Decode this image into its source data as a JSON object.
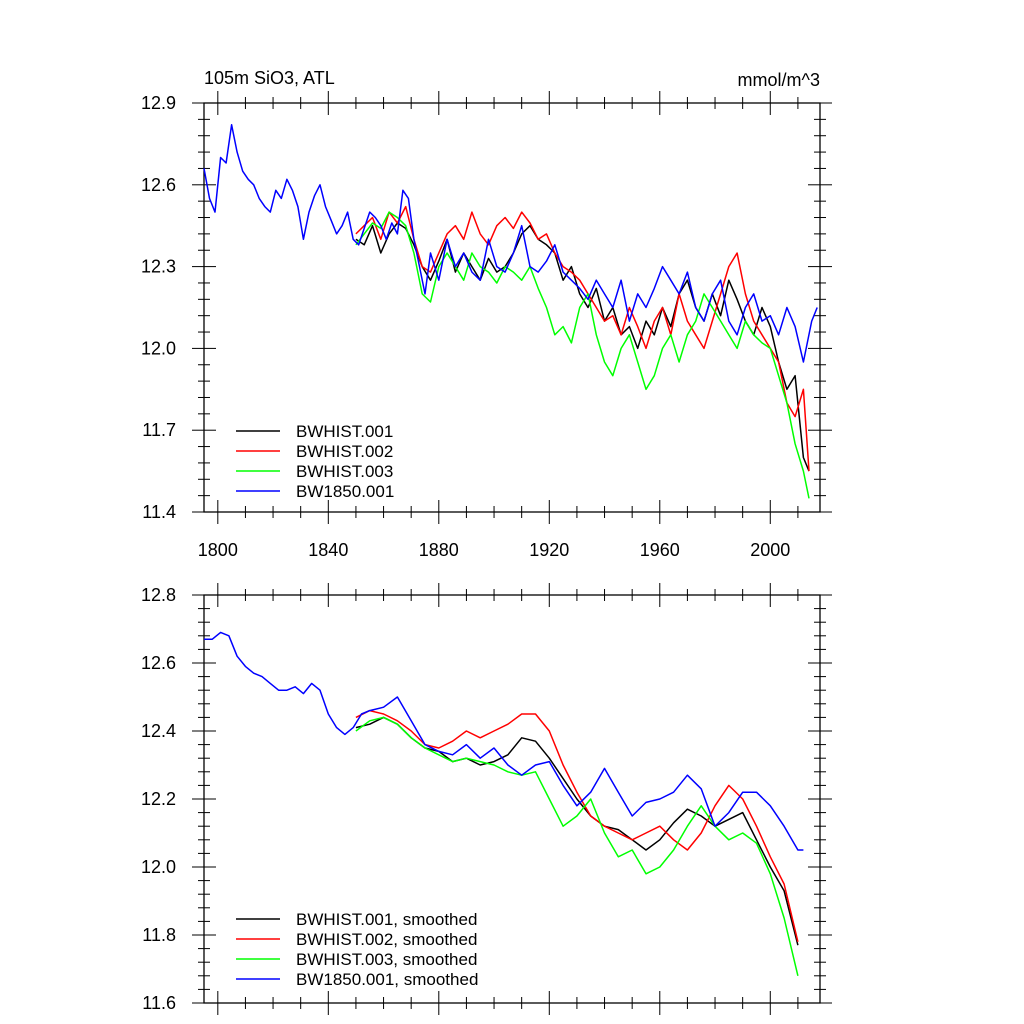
{
  "chart_data": [
    {
      "type": "line",
      "title": "105m SiO3, ATL",
      "units": "mmol/m^3",
      "xlabel": "",
      "ylabel": "",
      "xlim": [
        1795,
        2018
      ],
      "ylim": [
        11.4,
        12.9
      ],
      "xticks": [
        1800,
        1840,
        1880,
        1920,
        1960,
        2000
      ],
      "ytick_labels": [
        "12.9",
        "12.6",
        "12.3",
        "12.0",
        "11.7",
        "11.4"
      ],
      "legend_position": "bottom-left",
      "series": [
        {
          "name": "BWHIST.001",
          "color": "#000000",
          "x": [
            1850,
            1853,
            1856,
            1859,
            1862,
            1865,
            1868,
            1871,
            1874,
            1877,
            1880,
            1883,
            1886,
            1889,
            1892,
            1895,
            1898,
            1901,
            1904,
            1907,
            1910,
            1913,
            1916,
            1919,
            1922,
            1925,
            1928,
            1931,
            1934,
            1937,
            1940,
            1943,
            1946,
            1949,
            1952,
            1955,
            1958,
            1961,
            1964,
            1967,
            1970,
            1973,
            1976,
            1979,
            1982,
            1985,
            1988,
            1991,
            1994,
            1997,
            2000,
            2003,
            2006,
            2009,
            2012,
            2014
          ],
          "values": [
            12.4,
            12.38,
            12.45,
            12.35,
            12.42,
            12.46,
            12.44,
            12.38,
            12.3,
            12.25,
            12.32,
            12.4,
            12.28,
            12.35,
            12.3,
            12.25,
            12.33,
            12.28,
            12.3,
            12.35,
            12.42,
            12.45,
            12.4,
            12.38,
            12.35,
            12.25,
            12.3,
            12.2,
            12.15,
            12.22,
            12.1,
            12.15,
            12.05,
            12.08,
            12.0,
            12.1,
            12.05,
            12.15,
            12.08,
            12.2,
            12.25,
            12.15,
            12.1,
            12.2,
            12.12,
            12.25,
            12.18,
            12.1,
            12.05,
            12.15,
            12.08,
            11.95,
            11.85,
            11.9,
            11.6,
            11.55
          ]
        },
        {
          "name": "BWHIST.002",
          "color": "#ff0000",
          "x": [
            1850,
            1853,
            1856,
            1859,
            1862,
            1865,
            1868,
            1871,
            1874,
            1877,
            1880,
            1883,
            1886,
            1889,
            1892,
            1895,
            1898,
            1901,
            1904,
            1907,
            1910,
            1913,
            1916,
            1919,
            1922,
            1925,
            1928,
            1931,
            1934,
            1937,
            1940,
            1943,
            1946,
            1949,
            1952,
            1955,
            1958,
            1961,
            1964,
            1967,
            1970,
            1973,
            1976,
            1979,
            1982,
            1985,
            1988,
            1991,
            1994,
            1997,
            2000,
            2003,
            2006,
            2009,
            2012,
            2014
          ],
          "values": [
            12.42,
            12.45,
            12.48,
            12.4,
            12.5,
            12.46,
            12.52,
            12.4,
            12.3,
            12.28,
            12.35,
            12.42,
            12.45,
            12.4,
            12.5,
            12.42,
            12.38,
            12.45,
            12.48,
            12.44,
            12.5,
            12.46,
            12.4,
            12.42,
            12.35,
            12.3,
            12.28,
            12.25,
            12.2,
            12.15,
            12.1,
            12.12,
            12.05,
            12.15,
            12.08,
            12.0,
            12.1,
            12.15,
            12.05,
            12.2,
            12.1,
            12.05,
            12.0,
            12.1,
            12.2,
            12.3,
            12.35,
            12.2,
            12.1,
            12.05,
            12.0,
            11.95,
            11.8,
            11.75,
            11.85,
            11.55
          ]
        },
        {
          "name": "BWHIST.003",
          "color": "#00ff00",
          "x": [
            1850,
            1853,
            1856,
            1859,
            1862,
            1865,
            1868,
            1871,
            1874,
            1877,
            1880,
            1883,
            1886,
            1889,
            1892,
            1895,
            1898,
            1901,
            1904,
            1907,
            1910,
            1913,
            1916,
            1919,
            1922,
            1925,
            1928,
            1931,
            1934,
            1937,
            1940,
            1943,
            1946,
            1949,
            1952,
            1955,
            1958,
            1961,
            1964,
            1967,
            1970,
            1973,
            1976,
            1979,
            1982,
            1985,
            1988,
            1991,
            1994,
            1997,
            2000,
            2003,
            2006,
            2009,
            2012,
            2014
          ],
          "values": [
            12.38,
            12.42,
            12.46,
            12.44,
            12.5,
            12.48,
            12.45,
            12.35,
            12.2,
            12.17,
            12.3,
            12.35,
            12.3,
            12.25,
            12.35,
            12.3,
            12.28,
            12.24,
            12.3,
            12.28,
            12.25,
            12.3,
            12.22,
            12.15,
            12.05,
            12.08,
            12.02,
            12.15,
            12.2,
            12.05,
            11.95,
            11.9,
            12.0,
            12.05,
            11.95,
            11.85,
            11.9,
            12.0,
            12.05,
            11.95,
            12.05,
            12.1,
            12.2,
            12.15,
            12.1,
            12.05,
            12.0,
            12.1,
            12.05,
            12.02,
            12.0,
            11.9,
            11.8,
            11.65,
            11.55,
            11.45
          ]
        },
        {
          "name": "BW1850.001",
          "color": "#0000ff",
          "x": [
            1795,
            1797,
            1799,
            1801,
            1803,
            1805,
            1807,
            1809,
            1811,
            1813,
            1815,
            1817,
            1819,
            1821,
            1823,
            1825,
            1827,
            1829,
            1831,
            1833,
            1835,
            1837,
            1839,
            1841,
            1843,
            1845,
            1847,
            1849,
            1851,
            1853,
            1855,
            1857,
            1859,
            1861,
            1863,
            1865,
            1867,
            1869,
            1871,
            1873,
            1875,
            1877,
            1880,
            1883,
            1886,
            1889,
            1892,
            1895,
            1898,
            1901,
            1904,
            1907,
            1910,
            1913,
            1916,
            1919,
            1922,
            1925,
            1928,
            1931,
            1934,
            1937,
            1940,
            1943,
            1946,
            1949,
            1952,
            1955,
            1958,
            1961,
            1964,
            1967,
            1970,
            1973,
            1976,
            1979,
            1982,
            1985,
            1988,
            1991,
            1994,
            1997,
            2000,
            2003,
            2006,
            2009,
            2012,
            2015,
            2017
          ],
          "values": [
            12.66,
            12.55,
            12.5,
            12.7,
            12.68,
            12.82,
            12.72,
            12.65,
            12.62,
            12.6,
            12.55,
            12.52,
            12.5,
            12.58,
            12.55,
            12.62,
            12.58,
            12.52,
            12.4,
            12.5,
            12.56,
            12.6,
            12.52,
            12.47,
            12.42,
            12.45,
            12.5,
            12.4,
            12.38,
            12.44,
            12.5,
            12.48,
            12.45,
            12.4,
            12.46,
            12.42,
            12.58,
            12.55,
            12.4,
            12.3,
            12.2,
            12.35,
            12.25,
            12.4,
            12.3,
            12.35,
            12.28,
            12.25,
            12.4,
            12.3,
            12.28,
            12.35,
            12.45,
            12.3,
            12.28,
            12.32,
            12.38,
            12.28,
            12.25,
            12.22,
            12.18,
            12.25,
            12.2,
            12.15,
            12.25,
            12.1,
            12.2,
            12.15,
            12.22,
            12.3,
            12.25,
            12.2,
            12.28,
            12.15,
            12.1,
            12.2,
            12.25,
            12.1,
            12.05,
            12.15,
            12.2,
            12.1,
            12.12,
            12.05,
            12.15,
            12.08,
            11.95,
            12.1,
            12.15
          ]
        }
      ]
    },
    {
      "type": "line",
      "title": "",
      "xlabel": "",
      "ylabel": "",
      "xlim": [
        1795,
        2018
      ],
      "ylim": [
        11.6,
        12.8
      ],
      "xticks": [
        1800,
        1840,
        1880,
        1920,
        1960,
        2000
      ],
      "ytick_labels": [
        "12.8",
        "12.6",
        "12.4",
        "12.2",
        "12.0",
        "11.8",
        "11.6"
      ],
      "legend_position": "bottom-left",
      "series": [
        {
          "name": "BWHIST.001, smoothed",
          "color": "#000000",
          "x": [
            1850,
            1855,
            1860,
            1865,
            1870,
            1875,
            1880,
            1885,
            1890,
            1895,
            1900,
            1905,
            1910,
            1915,
            1920,
            1925,
            1930,
            1935,
            1940,
            1945,
            1950,
            1955,
            1960,
            1965,
            1970,
            1975,
            1980,
            1985,
            1990,
            1995,
            2000,
            2005,
            2010
          ],
          "values": [
            12.41,
            12.42,
            12.44,
            12.42,
            12.38,
            12.35,
            12.34,
            12.31,
            12.32,
            12.3,
            12.31,
            12.33,
            12.38,
            12.37,
            12.32,
            12.26,
            12.2,
            12.15,
            12.12,
            12.11,
            12.08,
            12.05,
            12.08,
            12.13,
            12.17,
            12.15,
            12.12,
            12.14,
            12.16,
            12.08,
            12.0,
            11.93,
            11.77
          ]
        },
        {
          "name": "BWHIST.002, smoothed",
          "color": "#ff0000",
          "x": [
            1850,
            1855,
            1860,
            1865,
            1870,
            1875,
            1880,
            1885,
            1890,
            1895,
            1900,
            1905,
            1910,
            1915,
            1920,
            1925,
            1930,
            1935,
            1940,
            1945,
            1950,
            1955,
            1960,
            1965,
            1970,
            1975,
            1980,
            1985,
            1990,
            1995,
            2000,
            2005,
            2010
          ],
          "values": [
            12.44,
            12.46,
            12.45,
            12.43,
            12.4,
            12.36,
            12.35,
            12.37,
            12.4,
            12.38,
            12.4,
            12.42,
            12.45,
            12.45,
            12.4,
            12.3,
            12.22,
            12.15,
            12.12,
            12.1,
            12.08,
            12.1,
            12.12,
            12.08,
            12.05,
            12.1,
            12.18,
            12.24,
            12.2,
            12.12,
            12.03,
            11.95,
            11.78
          ]
        },
        {
          "name": "BWHIST.003, smoothed",
          "color": "#00ff00",
          "x": [
            1850,
            1855,
            1860,
            1865,
            1870,
            1875,
            1880,
            1885,
            1890,
            1895,
            1900,
            1905,
            1910,
            1915,
            1920,
            1925,
            1930,
            1935,
            1940,
            1945,
            1950,
            1955,
            1960,
            1965,
            1970,
            1975,
            1980,
            1985,
            1990,
            1995,
            2000,
            2005,
            2010
          ],
          "values": [
            12.4,
            12.43,
            12.44,
            12.42,
            12.38,
            12.35,
            12.33,
            12.31,
            12.32,
            12.31,
            12.3,
            12.28,
            12.27,
            12.28,
            12.2,
            12.12,
            12.15,
            12.2,
            12.1,
            12.03,
            12.05,
            11.98,
            12.0,
            12.05,
            12.12,
            12.18,
            12.12,
            12.08,
            12.1,
            12.07,
            11.98,
            11.85,
            11.68
          ]
        },
        {
          "name": "BW1850.001, smoothed",
          "color": "#0000ff",
          "x": [
            1795,
            1798,
            1801,
            1804,
            1807,
            1810,
            1813,
            1816,
            1819,
            1822,
            1825,
            1828,
            1831,
            1834,
            1837,
            1840,
            1843,
            1846,
            1849,
            1852,
            1855,
            1860,
            1865,
            1870,
            1875,
            1880,
            1885,
            1890,
            1895,
            1900,
            1905,
            1910,
            1915,
            1920,
            1925,
            1930,
            1935,
            1940,
            1945,
            1950,
            1955,
            1960,
            1965,
            1970,
            1975,
            1980,
            1985,
            1990,
            1995,
            2000,
            2005,
            2010,
            2012
          ],
          "values": [
            12.67,
            12.67,
            12.69,
            12.68,
            12.62,
            12.59,
            12.57,
            12.56,
            12.54,
            12.52,
            12.52,
            12.53,
            12.51,
            12.54,
            12.52,
            12.45,
            12.41,
            12.39,
            12.41,
            12.45,
            12.46,
            12.47,
            12.5,
            12.43,
            12.36,
            12.34,
            12.33,
            12.36,
            12.32,
            12.35,
            12.3,
            12.27,
            12.3,
            12.31,
            12.24,
            12.18,
            12.22,
            12.29,
            12.22,
            12.15,
            12.19,
            12.2,
            12.22,
            12.27,
            12.23,
            12.12,
            12.16,
            12.22,
            12.22,
            12.18,
            12.12,
            12.05,
            12.05
          ]
        }
      ]
    }
  ]
}
